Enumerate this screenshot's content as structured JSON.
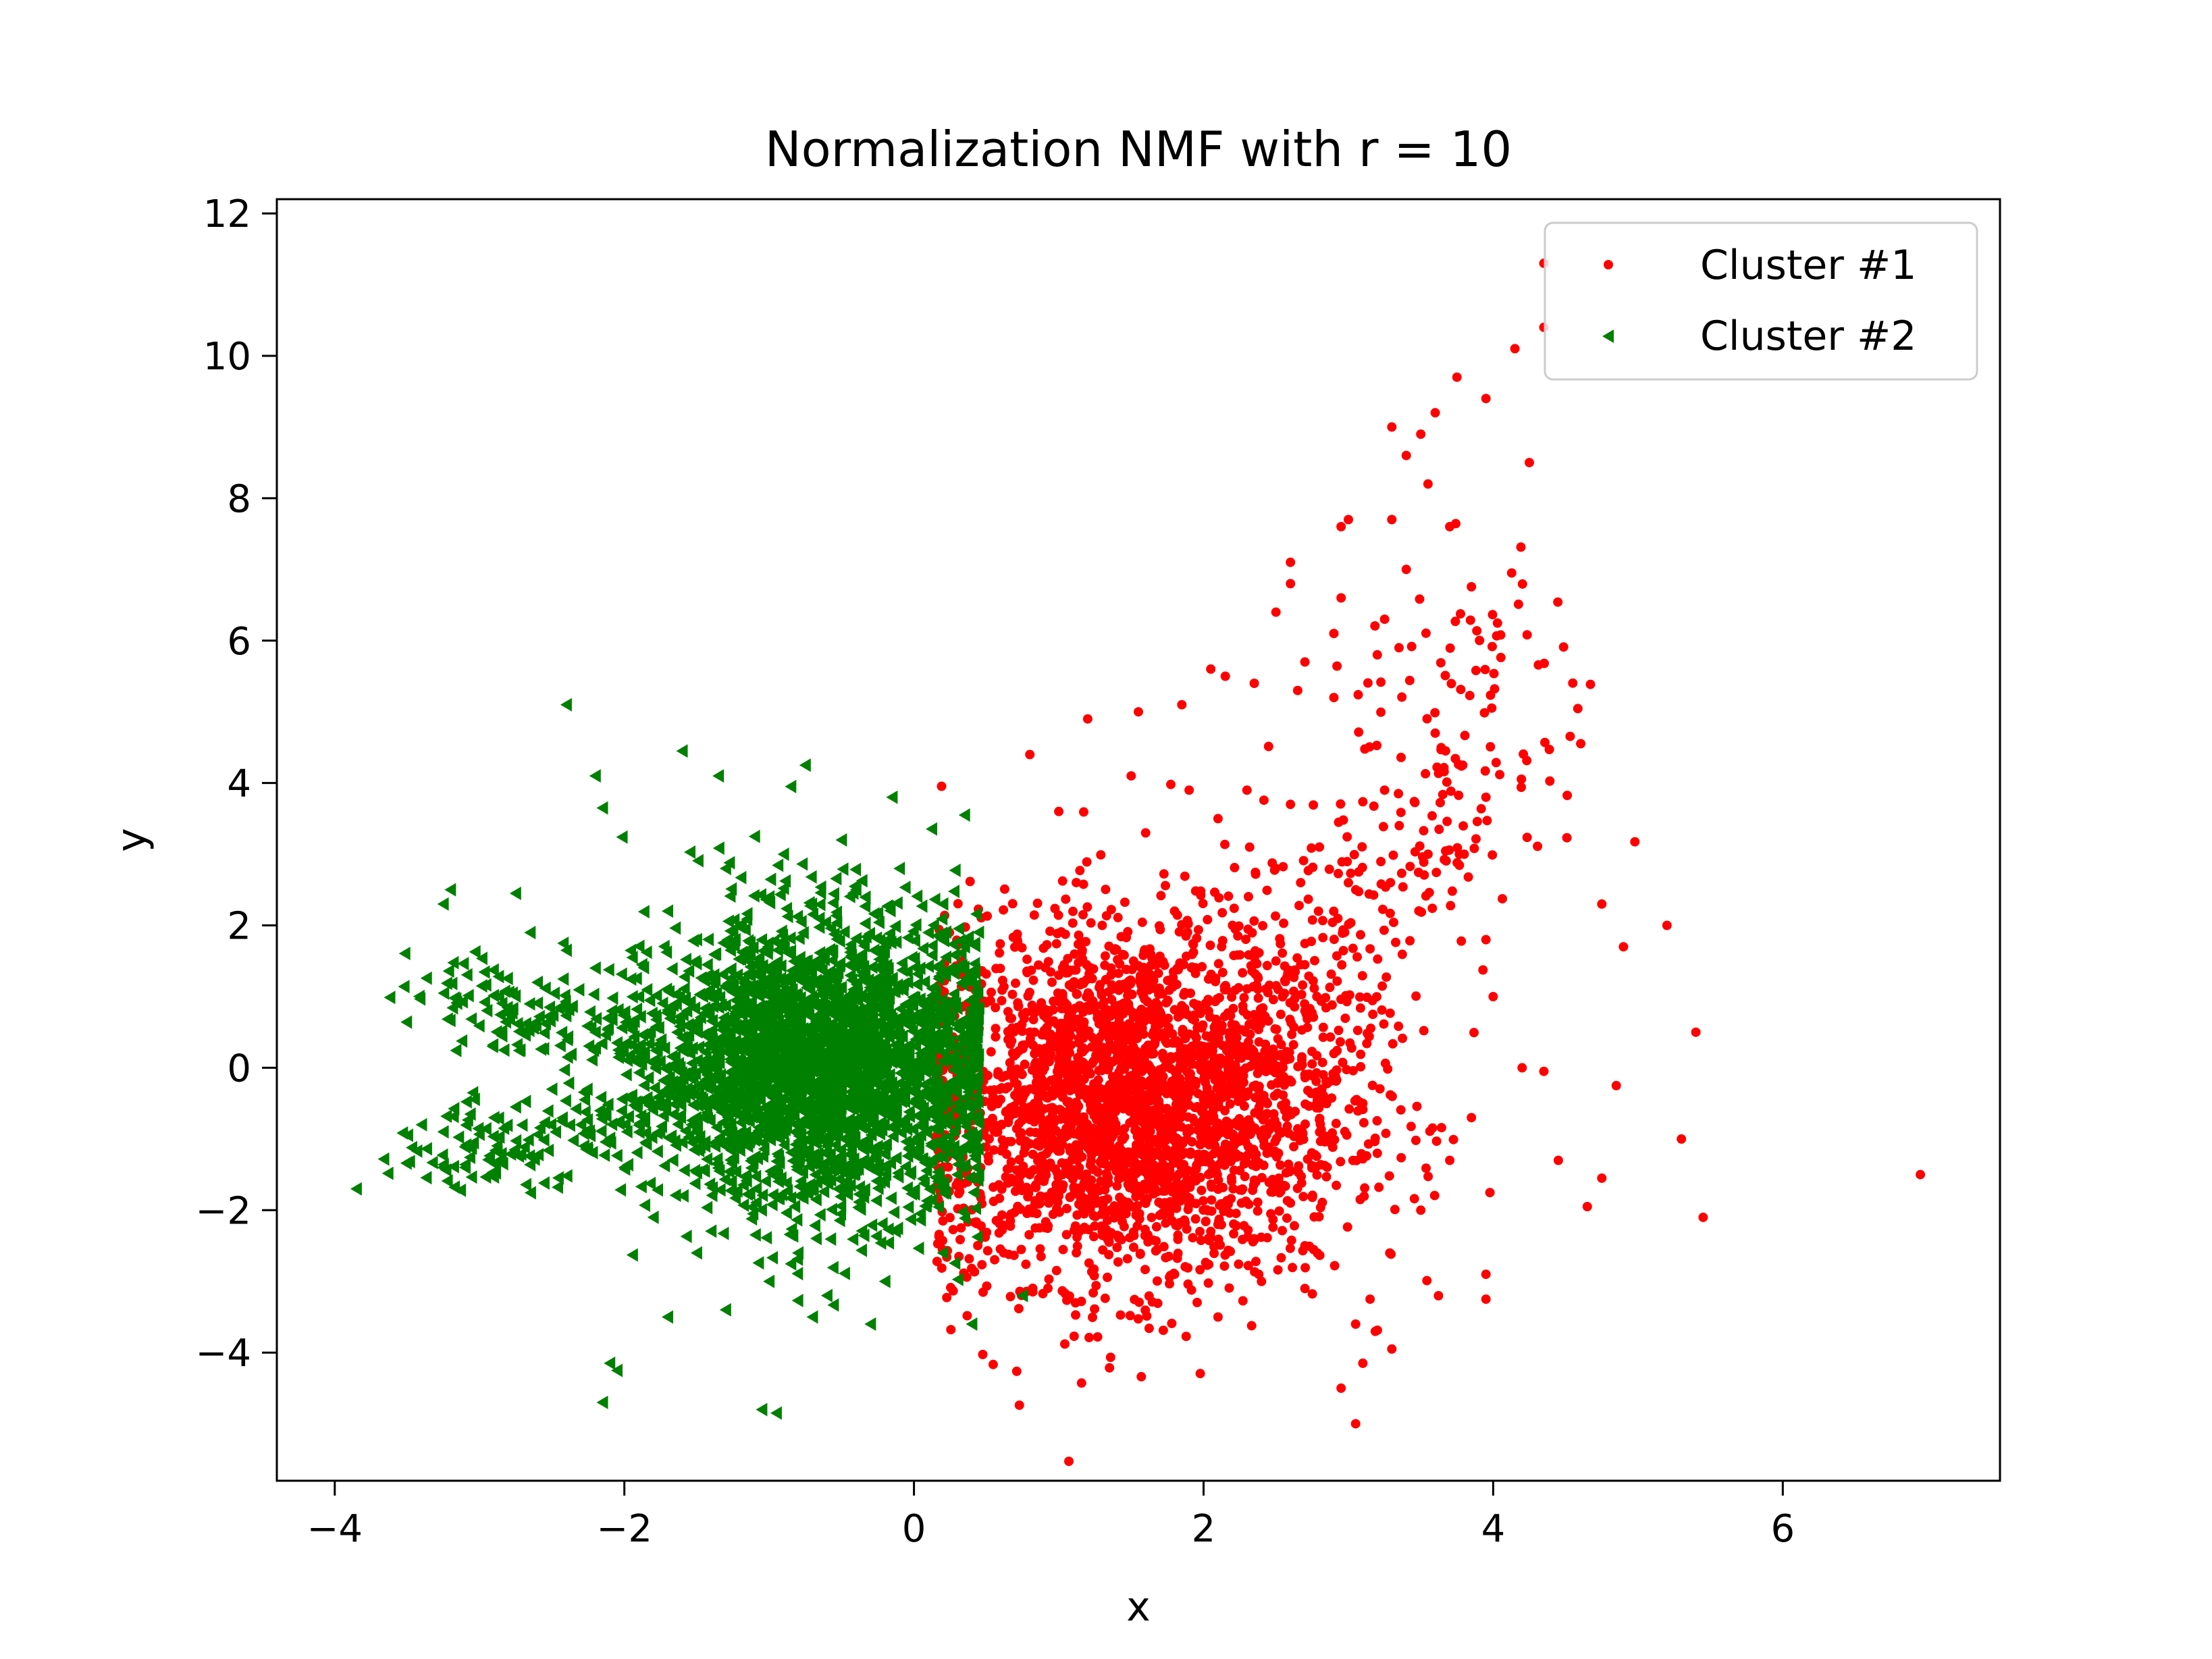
{
  "chart_data": {
    "type": "scatter",
    "title": "Normalization NMF with r = 10",
    "xlabel": "x",
    "ylabel": "y",
    "xlim": [
      -4.4,
      7.5
    ],
    "ylim": [
      -5.8,
      12.2
    ],
    "x_ticks": [
      -4,
      -2,
      0,
      2,
      4,
      6
    ],
    "y_ticks": [
      -4,
      -2,
      0,
      2,
      4,
      6,
      8,
      10,
      12
    ],
    "x_tick_labels": [
      "−4",
      "−2",
      "0",
      "2",
      "4",
      "6"
    ],
    "y_tick_labels": [
      "−4",
      "−2",
      "0",
      "2",
      "4",
      "6",
      "8",
      "10",
      "12"
    ],
    "grid": false,
    "legend": "top-right",
    "series": [
      {
        "name": "Cluster #1",
        "color": "#ff0000",
        "marker": "circle",
        "points": [
          [
            4.35,
            11.3
          ],
          [
            4.35,
            10.4
          ],
          [
            4.15,
            10.1
          ],
          [
            3.75,
            9.7
          ],
          [
            3.95,
            9.4
          ],
          [
            3.3,
            9.0
          ],
          [
            3.6,
            9.2
          ],
          [
            3.5,
            8.9
          ],
          [
            3.4,
            8.6
          ],
          [
            3.55,
            8.2
          ],
          [
            4.25,
            8.5
          ],
          [
            3.3,
            7.7
          ],
          [
            2.95,
            7.6
          ],
          [
            3.0,
            7.7
          ],
          [
            3.7,
            7.6
          ],
          [
            3.4,
            7.0
          ],
          [
            2.6,
            7.1
          ],
          [
            2.6,
            6.8
          ],
          [
            2.95,
            6.6
          ],
          [
            2.5,
            6.4
          ],
          [
            2.9,
            6.1
          ],
          [
            3.25,
            6.3
          ],
          [
            3.35,
            5.9
          ],
          [
            3.2,
            5.8
          ],
          [
            2.7,
            5.7
          ],
          [
            2.05,
            5.6
          ],
          [
            2.15,
            5.5
          ],
          [
            2.35,
            5.4
          ],
          [
            2.65,
            5.3
          ],
          [
            2.9,
            5.2
          ],
          [
            1.55,
            5.0
          ],
          [
            1.2,
            4.9
          ],
          [
            1.85,
            5.1
          ],
          [
            3.6,
            4.7
          ],
          [
            0.8,
            4.4
          ],
          [
            3.25,
            3.9
          ],
          [
            3.95,
            3.8
          ],
          [
            4.75,
            2.3
          ],
          [
            5.2,
            2.0
          ],
          [
            4.9,
            1.7
          ],
          [
            5.4,
            0.5
          ],
          [
            4.85,
            -0.25
          ],
          [
            5.3,
            -1.0
          ],
          [
            6.95,
            -1.5
          ],
          [
            5.45,
            -2.1
          ],
          [
            4.65,
            -1.95
          ],
          [
            4.75,
            -1.55
          ],
          [
            4.45,
            -1.3
          ],
          [
            3.95,
            -2.9
          ],
          [
            3.95,
            -3.25
          ],
          [
            3.15,
            -3.25
          ],
          [
            3.05,
            -3.6
          ],
          [
            2.95,
            -4.5
          ],
          [
            3.1,
            -4.15
          ],
          [
            3.05,
            -5.0
          ],
          [
            3.3,
            -3.95
          ],
          [
            2.1,
            -3.5
          ],
          [
            2.4,
            -3.0
          ],
          [
            2.7,
            -3.1
          ],
          [
            1.8,
            -2.9
          ],
          [
            1.0,
            3.6
          ],
          [
            1.5,
            4.1
          ],
          [
            1.6,
            3.3
          ],
          [
            1.9,
            3.9
          ],
          [
            2.1,
            3.5
          ],
          [
            2.3,
            3.9
          ],
          [
            2.6,
            3.7
          ],
          [
            2.8,
            3.1
          ],
          [
            3.0,
            2.6
          ],
          [
            3.55,
            3.0
          ],
          [
            3.8,
            3.0
          ],
          [
            3.95,
            1.8
          ],
          [
            4.0,
            1.0
          ],
          [
            4.2,
            0.0
          ],
          [
            4.35,
            -0.05
          ],
          [
            3.85,
            -0.7
          ],
          [
            3.7,
            -1.3
          ],
          [
            3.5,
            -2.0
          ],
          [
            2.7,
            -2.5
          ],
          [
            1.3,
            -2.3
          ],
          [
            1.0,
            -1.8
          ],
          [
            0.8,
            -1.5
          ],
          [
            0.7,
            -0.6
          ],
          [
            0.8,
            0.5
          ],
          [
            1.0,
            1.3
          ],
          [
            1.3,
            2.0
          ],
          [
            1.8,
            2.2
          ],
          [
            2.2,
            2.0
          ],
          [
            2.5,
            1.5
          ],
          [
            2.7,
            0.8
          ],
          [
            2.9,
            0.2
          ],
          [
            3.1,
            -0.5
          ],
          [
            3.2,
            -1.2
          ],
          [
            2.6,
            -1.9
          ],
          [
            2.1,
            -2.2
          ]
        ],
        "core": {
          "cx": 1.5,
          "cy": -0.5,
          "sx": 0.75,
          "sy": 1.25
        }
      },
      {
        "name": "Cluster #2",
        "color": "#008000",
        "marker": "triangle-left",
        "points": [
          [
            -2.4,
            5.1
          ],
          [
            -1.6,
            4.45
          ],
          [
            -1.35,
            4.1
          ],
          [
            -2.2,
            4.1
          ],
          [
            -0.75,
            4.25
          ],
          [
            -0.85,
            3.95
          ],
          [
            -0.15,
            3.8
          ],
          [
            0.35,
            3.55
          ],
          [
            -2.15,
            3.65
          ],
          [
            -1.1,
            3.25
          ],
          [
            -3.2,
            2.5
          ],
          [
            -3.25,
            2.3
          ],
          [
            -2.75,
            2.45
          ],
          [
            -3.85,
            -1.7
          ],
          [
            -3.4,
            -0.8
          ],
          [
            -3.25,
            -0.9
          ],
          [
            -3.1,
            -1.4
          ],
          [
            -2.15,
            -4.7
          ],
          [
            -2.05,
            -4.25
          ],
          [
            -1.05,
            -4.8
          ],
          [
            -0.95,
            -4.85
          ],
          [
            -2.1,
            -4.15
          ],
          [
            -1.7,
            -3.5
          ],
          [
            -1.3,
            -3.4
          ],
          [
            -0.7,
            -3.5
          ],
          [
            -0.3,
            -3.6
          ],
          [
            0.4,
            -3.6
          ],
          [
            0.75,
            -3.2
          ],
          [
            -2.4,
            1.65
          ],
          [
            -2.65,
            1.9
          ],
          [
            -2.75,
            -0.55
          ],
          [
            -2.9,
            -0.7
          ],
          [
            -2.6,
            1.2
          ],
          [
            -2.2,
            1.4
          ],
          [
            -1.7,
            2.2
          ],
          [
            -1.3,
            2.8
          ],
          [
            -0.9,
            3.0
          ],
          [
            -0.5,
            3.2
          ],
          [
            -0.1,
            2.8
          ],
          [
            0.2,
            2.3
          ],
          [
            0.35,
            1.7
          ],
          [
            0.35,
            0.6
          ],
          [
            0.3,
            -0.5
          ],
          [
            0.3,
            -1.5
          ],
          [
            0.2,
            -2.6
          ],
          [
            -0.2,
            -3.0
          ],
          [
            -0.6,
            -3.2
          ],
          [
            -1.0,
            -3.0
          ],
          [
            -1.5,
            -2.6
          ],
          [
            -1.8,
            -2.1
          ],
          [
            -2.0,
            -1.4
          ],
          [
            -2.3,
            -0.8
          ],
          [
            -2.5,
            -0.3
          ],
          [
            -2.2,
            0.5
          ],
          [
            -1.9,
            1.0
          ],
          [
            -1.5,
            1.8
          ],
          [
            -1.0,
            2.4
          ],
          [
            -0.4,
            2.5
          ],
          [
            0.1,
            1.9
          ],
          [
            -0.8,
            -2.6
          ]
        ],
        "core": {
          "cx": -0.6,
          "cy": 0.05,
          "sx": 0.6,
          "sy": 1.0
        }
      }
    ]
  }
}
